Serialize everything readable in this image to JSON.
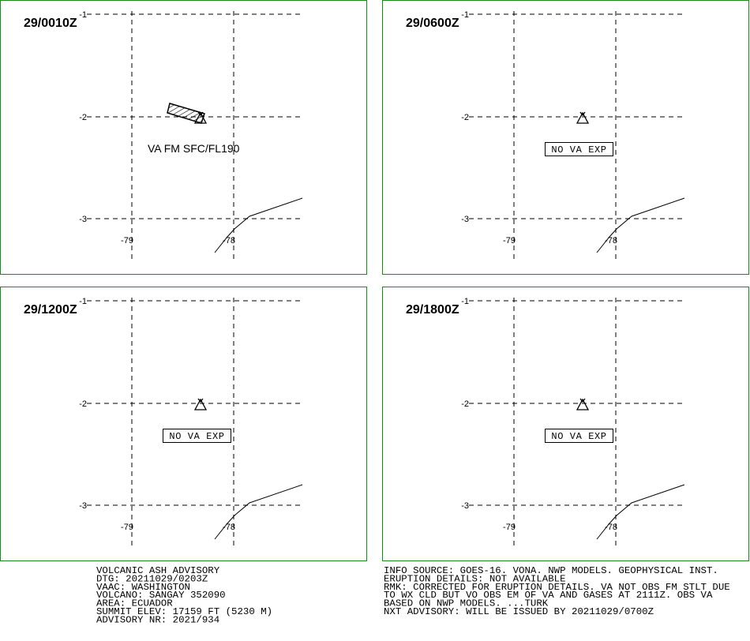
{
  "panels": [
    {
      "time": "29/0010Z",
      "label": "VA FM SFC/FL190",
      "ash_area": true
    },
    {
      "time": "29/0600Z",
      "label": "NO VA EXP"
    },
    {
      "time": "29/1200Z",
      "label": "NO VA EXP"
    },
    {
      "time": "29/1800Z",
      "label": "NO VA EXP"
    }
  ],
  "lat_labels": [
    "-1",
    "-2",
    "-3"
  ],
  "lon_labels": [
    "-79",
    "-78"
  ],
  "advisory": [
    "VOLCANIC ASH ADVISORY",
    "DTG: 20211029/0203Z",
    "VAAC: WASHINGTON",
    "VOLCANO: SANGAY 352090",
    "AREA: ECUADOR",
    "SUMMIT ELEV: 17159 FT (5230 M)",
    "ADVISORY NR: 2021/934"
  ],
  "remarks": [
    "INFO SOURCE: GOES-16. VONA. NWP MODELS. GEOPHYSICAL INST.",
    "ERUPTION DETAILS: NOT AVAILABLE",
    "RMK: CORRECTED FOR ERUPTION DETAILS. VA NOT OBS FM STLT DUE",
    "TO WX CLD BUT VO OBS EM OF VA AND GASES AT 2111Z. OBS VA",
    "BASED ON NWP MODELS. ...TURK",
    "NXT ADVISORY: WILL BE ISSUED BY 20211029/0700Z"
  ]
}
